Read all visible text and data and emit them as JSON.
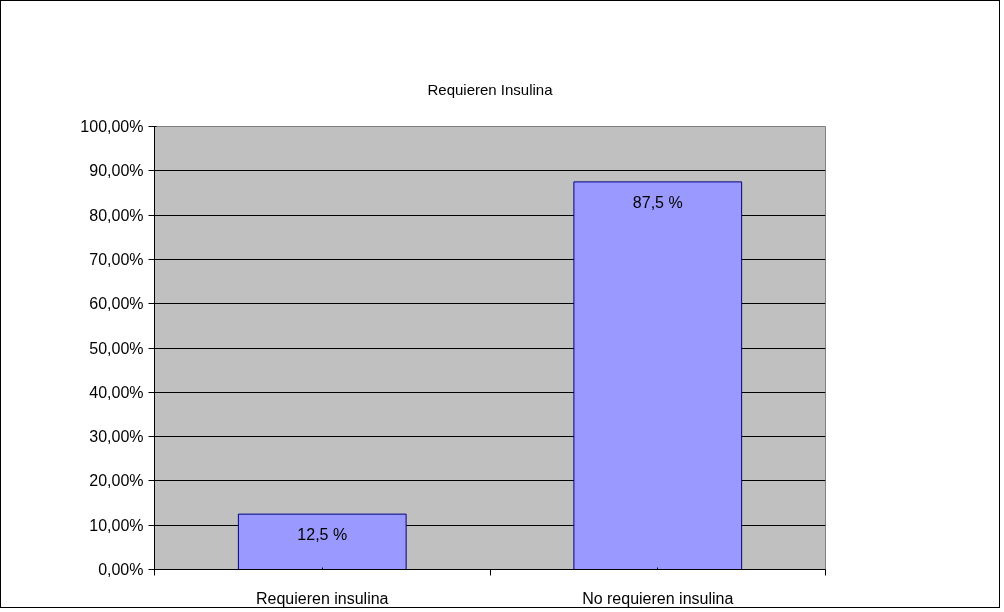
{
  "chart_data": {
    "type": "bar",
    "title": "Requieren Insulina",
    "categories": [
      "Requieren insulina",
      "No requieren insulina"
    ],
    "values": [
      12.5,
      87.5
    ],
    "color": "#9999ff",
    "value_labels": [
      "12,5 %",
      "87,5 %"
    ],
    "ylim": [
      0,
      100
    ],
    "yticks": [
      {
        "value": 0,
        "label": "0,00%"
      },
      {
        "value": 10,
        "label": "10,00%"
      },
      {
        "value": 20,
        "label": "20,00%"
      },
      {
        "value": 30,
        "label": "30,00%"
      },
      {
        "value": 40,
        "label": "40,00%"
      },
      {
        "value": 50,
        "label": "50,00%"
      },
      {
        "value": 60,
        "label": "60,00%"
      },
      {
        "value": 70,
        "label": "70,00%"
      },
      {
        "value": 80,
        "label": "80,00%"
      },
      {
        "value": 90,
        "label": "90,00%"
      },
      {
        "value": 100,
        "label": "100,00%"
      }
    ],
    "grid": "y"
  }
}
